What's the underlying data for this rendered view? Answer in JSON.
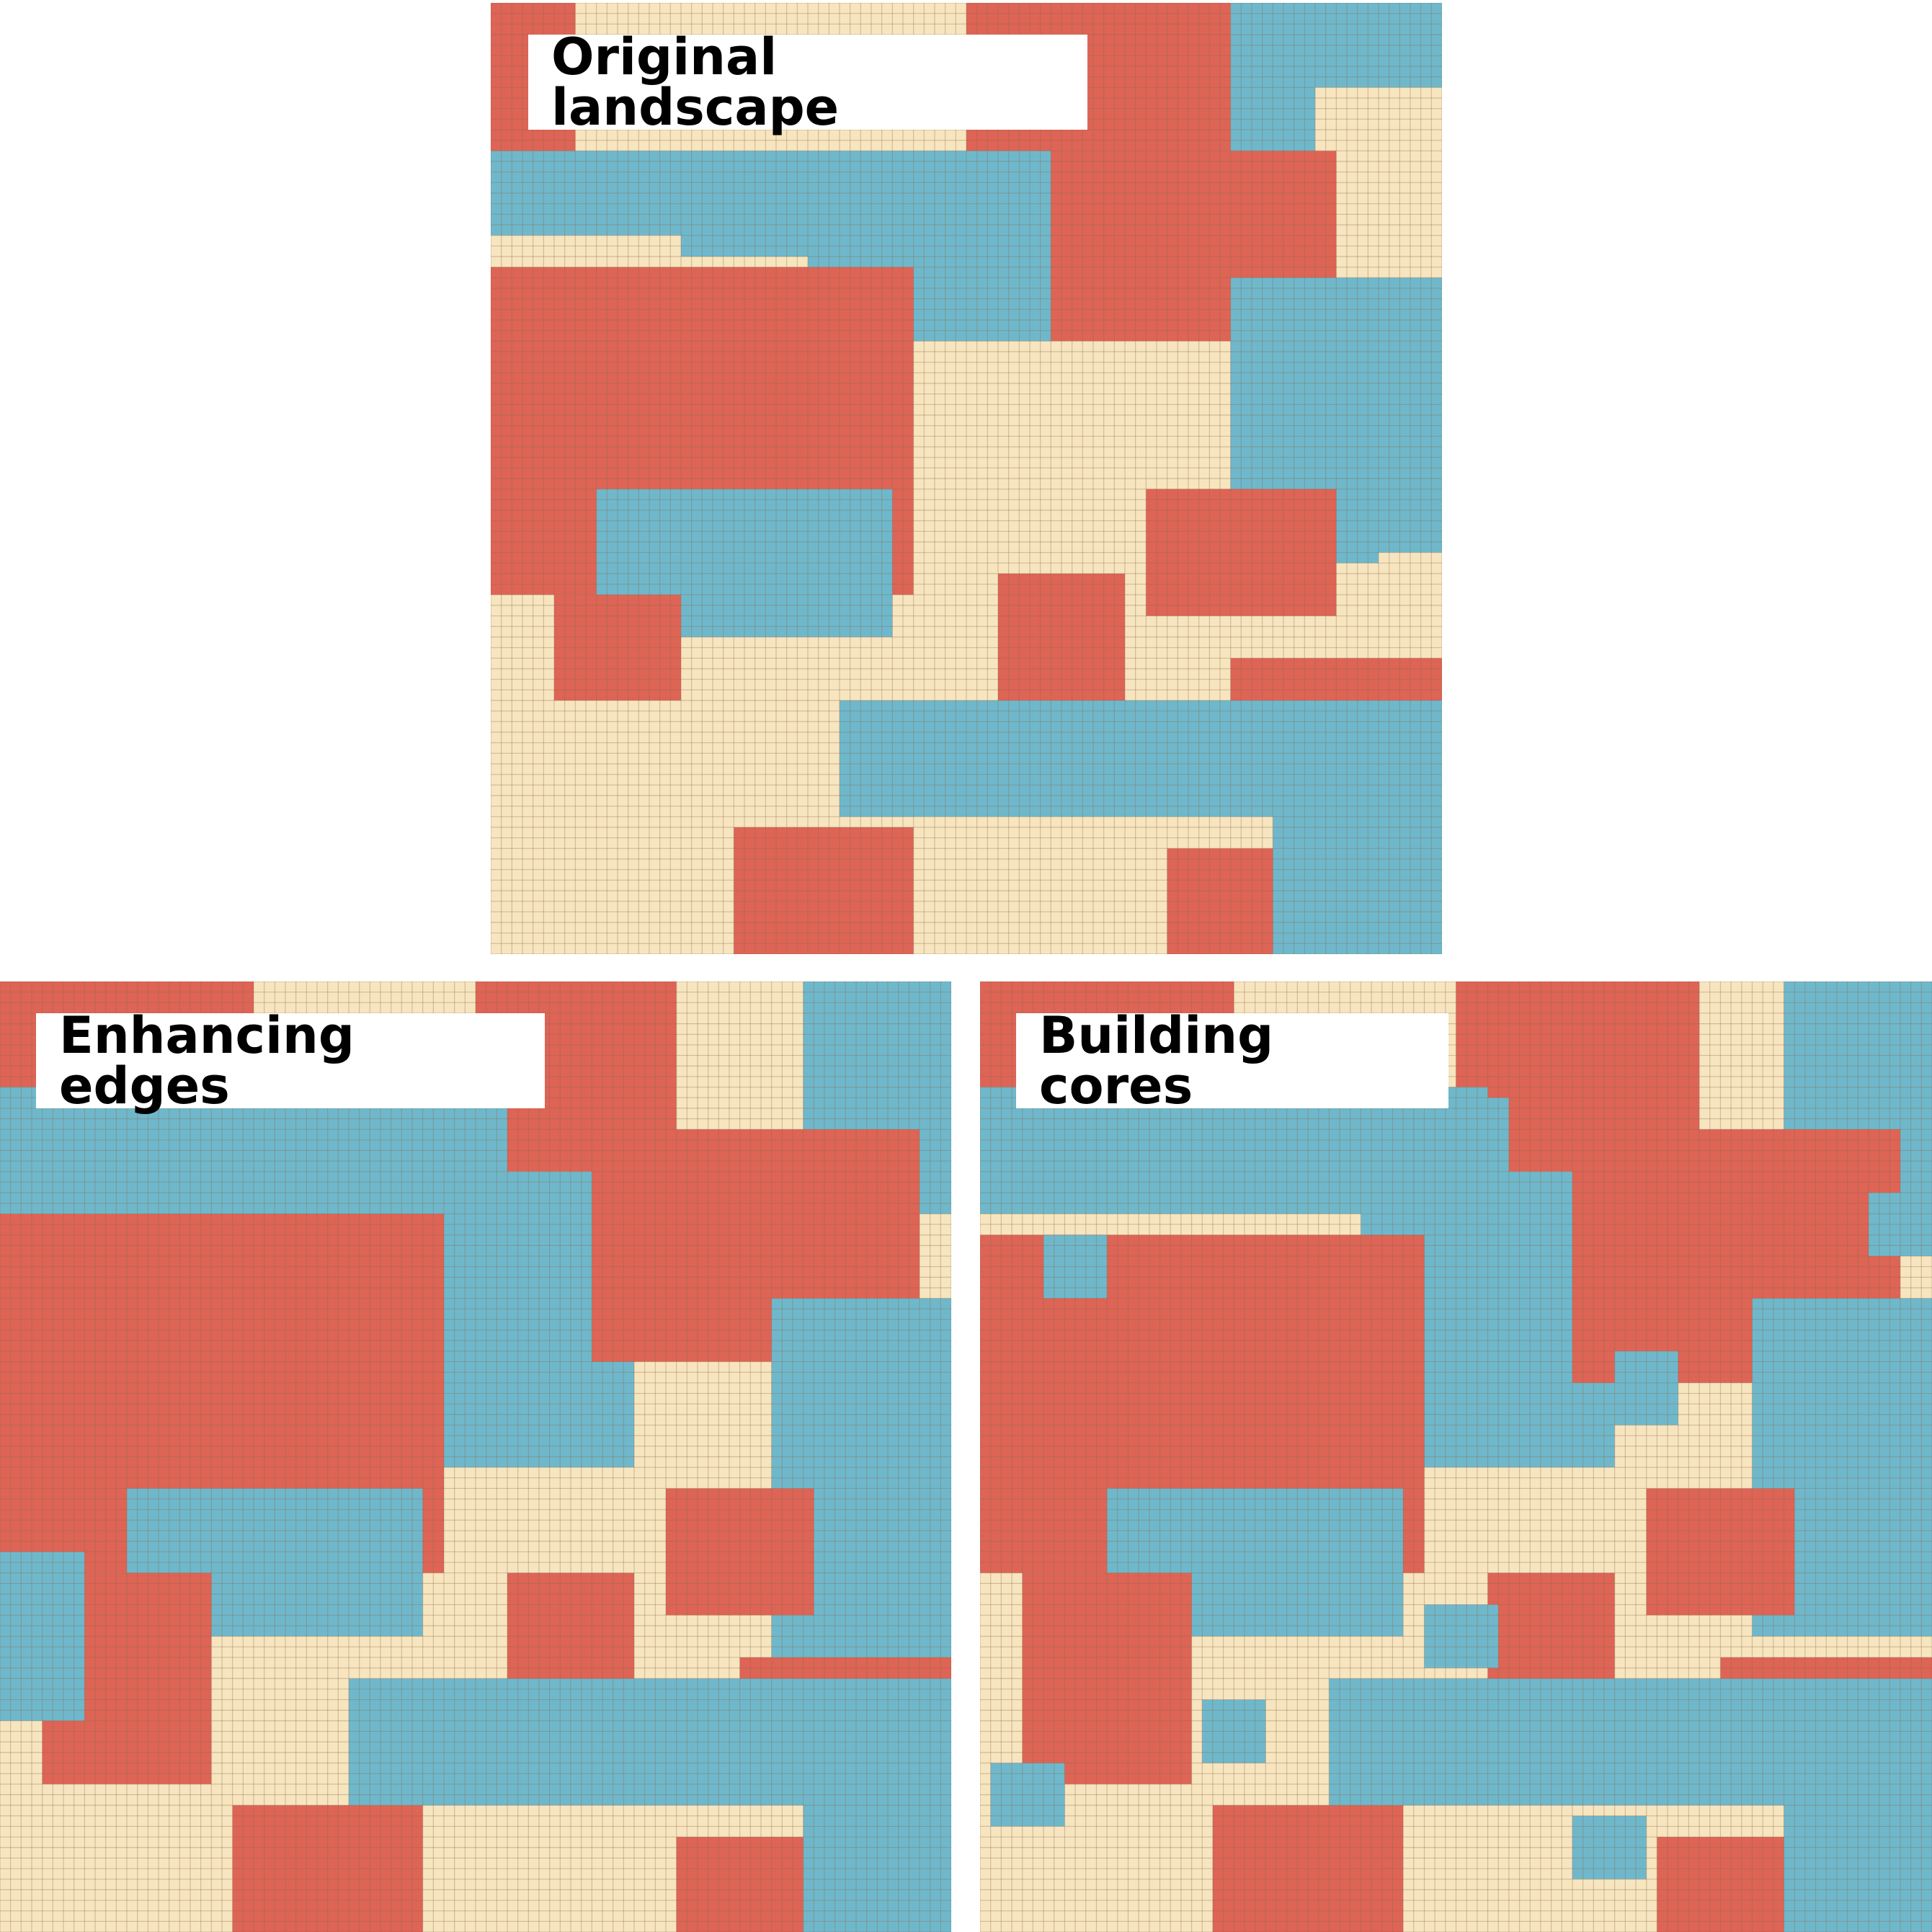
{
  "panels": [
    {
      "id": "original",
      "title": "Original landscape"
    },
    {
      "id": "edges",
      "title": "Enhancing edges"
    },
    {
      "id": "cores",
      "title": "Building cores"
    }
  ],
  "legend_colors": {
    "red": "#de6456",
    "blue": "#6fb8cc",
    "cream": "#f7e5bf",
    "gridline_on_red": "#b64d43",
    "gridline_on_blue": "#5f97a6",
    "gridline_on_cream": "#c8a76e"
  },
  "grid": {
    "cells_per_side": 90
  },
  "regions": {
    "original": [
      [
        "red",
        0,
        0,
        8,
        17
      ],
      [
        "red",
        45,
        0,
        70,
        16
      ],
      [
        "red",
        70,
        3,
        89,
        16
      ],
      [
        "blue",
        0,
        14,
        80,
        24
      ],
      [
        "blue",
        70,
        0,
        90,
        16
      ],
      [
        "cream",
        0,
        22,
        18,
        32
      ],
      [
        "cream",
        78,
        8,
        90,
        26
      ],
      [
        "blue",
        30,
        18,
        60,
        40
      ],
      [
        "red",
        0,
        25,
        40,
        56
      ],
      [
        "red",
        53,
        14,
        80,
        37
      ],
      [
        "cream",
        40,
        32,
        78,
        70
      ],
      [
        "blue",
        70,
        26,
        90,
        53
      ],
      [
        "blue",
        10,
        46,
        38,
        60
      ],
      [
        "red",
        62,
        46,
        80,
        58
      ],
      [
        "red",
        48,
        54,
        60,
        67
      ],
      [
        "red",
        70,
        62,
        90,
        75
      ],
      [
        "blue",
        33,
        66,
        90,
        77
      ],
      [
        "red",
        6,
        56,
        18,
        76
      ],
      [
        "cream",
        0,
        66,
        33,
        90
      ],
      [
        "cream",
        40,
        77,
        70,
        90
      ],
      [
        "red",
        23,
        78,
        40,
        90
      ],
      [
        "red",
        64,
        80,
        80,
        90
      ],
      [
        "blue",
        74,
        76,
        90,
        90
      ],
      [
        "cream",
        84,
        52,
        90,
        58
      ]
    ],
    "edges": [
      [
        "cream",
        0,
        0,
        90,
        90
      ],
      [
        "red",
        0,
        0,
        24,
        12
      ],
      [
        "red",
        45,
        0,
        64,
        18
      ],
      [
        "blue",
        0,
        10,
        48,
        22
      ],
      [
        "blue",
        76,
        0,
        90,
        22
      ],
      [
        "cream",
        0,
        22,
        14,
        30
      ],
      [
        "blue",
        36,
        18,
        60,
        46
      ],
      [
        "red",
        0,
        22,
        42,
        56
      ],
      [
        "red",
        56,
        14,
        87,
        36
      ],
      [
        "blue",
        73,
        30,
        90,
        64
      ],
      [
        "blue",
        12,
        48,
        40,
        62
      ],
      [
        "red",
        63,
        48,
        77,
        60
      ],
      [
        "red",
        48,
        56,
        60,
        67
      ],
      [
        "red",
        70,
        64,
        90,
        76
      ],
      [
        "blue",
        33,
        66,
        90,
        78
      ],
      [
        "red",
        4,
        56,
        20,
        76
      ],
      [
        "red",
        22,
        78,
        40,
        90
      ],
      [
        "red",
        64,
        81,
        78,
        90
      ],
      [
        "blue",
        76,
        77,
        90,
        90
      ],
      [
        "blue",
        0,
        54,
        8,
        70
      ]
    ],
    "cores": [
      [
        "cream",
        0,
        0,
        90,
        90
      ],
      [
        "red",
        0,
        0,
        24,
        12
      ],
      [
        "red",
        45,
        0,
        68,
        18
      ],
      [
        "blue",
        0,
        10,
        48,
        22
      ],
      [
        "blue",
        76,
        0,
        90,
        22
      ],
      [
        "cream",
        0,
        22,
        16,
        30
      ],
      [
        "blue",
        36,
        18,
        60,
        46
      ],
      [
        "red",
        0,
        24,
        42,
        56
      ],
      [
        "red",
        56,
        14,
        87,
        38
      ],
      [
        "blue",
        73,
        30,
        90,
        62
      ],
      [
        "blue",
        12,
        48,
        40,
        62
      ],
      [
        "red",
        63,
        48,
        77,
        60
      ],
      [
        "red",
        48,
        56,
        60,
        67
      ],
      [
        "red",
        70,
        64,
        90,
        76
      ],
      [
        "blue",
        33,
        66,
        90,
        78
      ],
      [
        "red",
        4,
        56,
        20,
        76
      ],
      [
        "red",
        22,
        78,
        40,
        90
      ],
      [
        "red",
        64,
        81,
        78,
        90
      ],
      [
        "blue",
        76,
        77,
        90,
        90
      ],
      [
        "blue",
        6,
        24,
        12,
        30
      ],
      [
        "blue",
        43,
        11,
        50,
        18
      ],
      [
        "blue",
        84,
        20,
        90,
        26
      ],
      [
        "blue",
        60,
        35,
        66,
        42
      ],
      [
        "blue",
        42,
        59,
        49,
        65
      ],
      [
        "blue",
        21,
        68,
        27,
        74
      ],
      [
        "blue",
        1,
        74,
        8,
        80
      ],
      [
        "blue",
        56,
        79,
        63,
        85
      ],
      [
        "blue",
        82,
        54,
        90,
        60
      ]
    ]
  }
}
